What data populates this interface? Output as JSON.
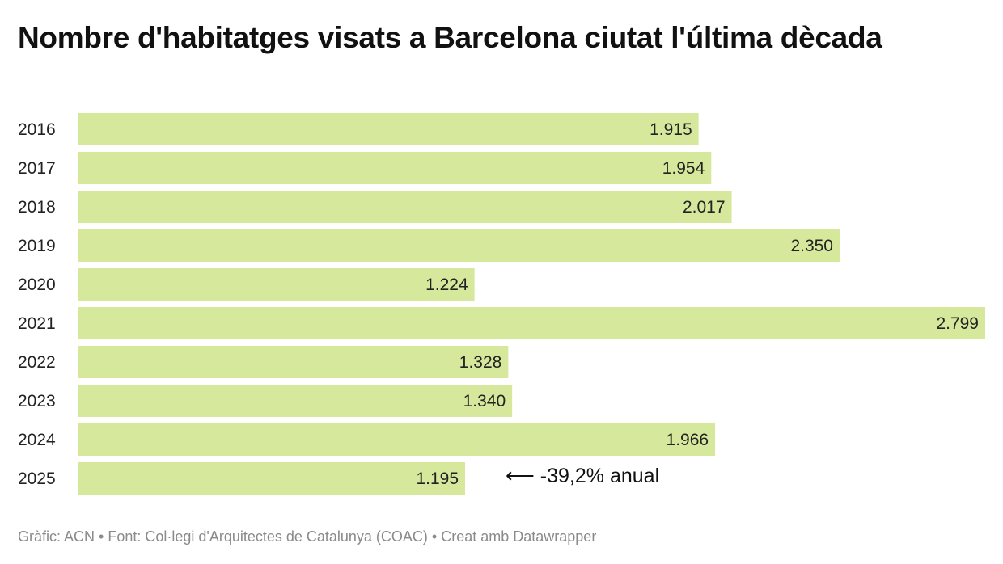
{
  "chart_data": {
    "type": "bar",
    "orientation": "horizontal",
    "title": "Nombre d'habitatges visats a Barcelona ciutat l'última dècada",
    "categories": [
      "2016",
      "2017",
      "2018",
      "2019",
      "2020",
      "2021",
      "2022",
      "2023",
      "2024",
      "2025"
    ],
    "values": [
      1915,
      1954,
      2017,
      2350,
      1224,
      2799,
      1328,
      1340,
      1966,
      1195
    ],
    "data_labels": [
      "1.915",
      "1.954",
      "2.017",
      "2.350",
      "1.224",
      "2.799",
      "1.328",
      "1.340",
      "1.966",
      "1.195"
    ],
    "annotation": {
      "category": "2025",
      "text": "⟵ -39,2% anual"
    },
    "bar_color": "#d5e89b",
    "xlim": [
      0,
      2799
    ],
    "grid": false
  },
  "footer": "Gràfic: ACN • Font: Col·legi d'Arquitectes de Catalunya (COAC) • Creat amb Datawrapper"
}
